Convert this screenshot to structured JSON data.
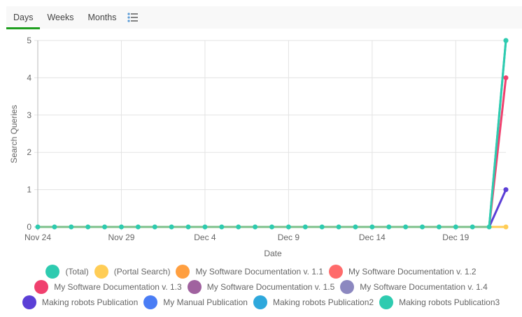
{
  "tabs": [
    {
      "label": "Days",
      "active": true
    },
    {
      "label": "Weeks",
      "active": false
    },
    {
      "label": "Months",
      "active": false
    }
  ],
  "list_icon": "list-view-icon",
  "chart_data": {
    "type": "line",
    "title": "",
    "xlabel": "Date",
    "ylabel": "Search Queries",
    "ylim": [
      0,
      5
    ],
    "yticks": [
      0,
      1,
      2,
      3,
      4,
      5
    ],
    "xtick_labels": [
      "Nov 24",
      "Nov 29",
      "Dec 4",
      "Dec 9",
      "Dec 14",
      "Dec 19"
    ],
    "x": [
      "Nov 24",
      "Nov 25",
      "Nov 26",
      "Nov 27",
      "Nov 28",
      "Nov 29",
      "Nov 30",
      "Dec 1",
      "Dec 2",
      "Dec 3",
      "Dec 4",
      "Dec 5",
      "Dec 6",
      "Dec 7",
      "Dec 8",
      "Dec 9",
      "Dec 10",
      "Dec 11",
      "Dec 12",
      "Dec 13",
      "Dec 14",
      "Dec 15",
      "Dec 16",
      "Dec 17",
      "Dec 18",
      "Dec 19",
      "Dec 20",
      "Dec 21",
      "Dec 22"
    ],
    "grid": true,
    "legend_position": "bottom",
    "series": [
      {
        "name": "(Total)",
        "color": "#2ecbb0",
        "values": [
          0,
          0,
          0,
          0,
          0,
          0,
          0,
          0,
          0,
          0,
          0,
          0,
          0,
          0,
          0,
          0,
          0,
          0,
          0,
          0,
          0,
          0,
          0,
          0,
          0,
          0,
          0,
          0,
          5
        ]
      },
      {
        "name": "(Portal Search)",
        "color": "#ffcd56",
        "values": [
          0,
          0,
          0,
          0,
          0,
          0,
          0,
          0,
          0,
          0,
          0,
          0,
          0,
          0,
          0,
          0,
          0,
          0,
          0,
          0,
          0,
          0,
          0,
          0,
          0,
          0,
          0,
          0,
          0
        ]
      },
      {
        "name": "My Software Documentation v. 1.1",
        "color": "#ff9f40",
        "values": [
          0,
          0,
          0,
          0,
          0,
          0,
          0,
          0,
          0,
          0,
          0,
          0,
          0,
          0,
          0,
          0,
          0,
          0,
          0,
          0,
          0,
          0,
          0,
          0,
          0,
          0,
          0,
          0,
          0
        ]
      },
      {
        "name": "My Software Documentation v. 1.2",
        "color": "#ff6b6b",
        "values": [
          0,
          0,
          0,
          0,
          0,
          0,
          0,
          0,
          0,
          0,
          0,
          0,
          0,
          0,
          0,
          0,
          0,
          0,
          0,
          0,
          0,
          0,
          0,
          0,
          0,
          0,
          0,
          0,
          0
        ]
      },
      {
        "name": "My Software Documentation v. 1.3",
        "color": "#f0406e",
        "values": [
          0,
          0,
          0,
          0,
          0,
          0,
          0,
          0,
          0,
          0,
          0,
          0,
          0,
          0,
          0,
          0,
          0,
          0,
          0,
          0,
          0,
          0,
          0,
          0,
          0,
          0,
          0,
          0,
          4
        ]
      },
      {
        "name": "My Software Documentation v. 1.5",
        "color": "#a0629f",
        "values": [
          0,
          0,
          0,
          0,
          0,
          0,
          0,
          0,
          0,
          0,
          0,
          0,
          0,
          0,
          0,
          0,
          0,
          0,
          0,
          0,
          0,
          0,
          0,
          0,
          0,
          0,
          0,
          0,
          0
        ]
      },
      {
        "name": "My Software Documentation v. 1.4",
        "color": "#8c88c0",
        "values": [
          0,
          0,
          0,
          0,
          0,
          0,
          0,
          0,
          0,
          0,
          0,
          0,
          0,
          0,
          0,
          0,
          0,
          0,
          0,
          0,
          0,
          0,
          0,
          0,
          0,
          0,
          0,
          0,
          0
        ]
      },
      {
        "name": "Making robots Publication",
        "color": "#5b3fd6",
        "values": [
          0,
          0,
          0,
          0,
          0,
          0,
          0,
          0,
          0,
          0,
          0,
          0,
          0,
          0,
          0,
          0,
          0,
          0,
          0,
          0,
          0,
          0,
          0,
          0,
          0,
          0,
          0,
          0,
          1
        ]
      },
      {
        "name": "My Manual Publication",
        "color": "#4a7df5",
        "values": [
          0,
          0,
          0,
          0,
          0,
          0,
          0,
          0,
          0,
          0,
          0,
          0,
          0,
          0,
          0,
          0,
          0,
          0,
          0,
          0,
          0,
          0,
          0,
          0,
          0,
          0,
          0,
          0,
          0
        ]
      },
      {
        "name": "Making robots Publication2",
        "color": "#2ea8dc",
        "values": [
          0,
          0,
          0,
          0,
          0,
          0,
          0,
          0,
          0,
          0,
          0,
          0,
          0,
          0,
          0,
          0,
          0,
          0,
          0,
          0,
          0,
          0,
          0,
          0,
          0,
          0,
          0,
          0,
          0
        ]
      },
      {
        "name": "Making robots Publication3",
        "color": "#2ecbb0",
        "values": [
          0,
          0,
          0,
          0,
          0,
          0,
          0,
          0,
          0,
          0,
          0,
          0,
          0,
          0,
          0,
          0,
          0,
          0,
          0,
          0,
          0,
          0,
          0,
          0,
          0,
          0,
          0,
          0,
          5
        ]
      }
    ]
  },
  "legend_rows": [
    [
      0,
      1,
      2,
      3
    ],
    [
      4,
      5,
      6
    ],
    [
      7,
      8,
      9,
      10
    ]
  ]
}
